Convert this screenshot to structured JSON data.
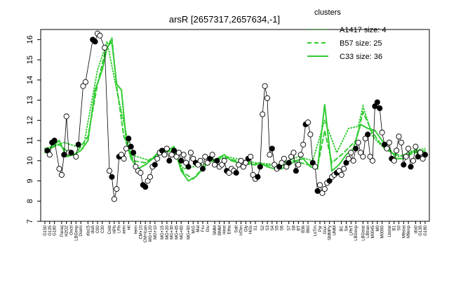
{
  "chart_data": {
    "type": "line",
    "title": "arsR [2657317,2657634,-1]",
    "xlabel": "",
    "ylabel": "",
    "ylim": [
      7,
      16.5
    ],
    "yticks": [
      7,
      8,
      9,
      10,
      11,
      12,
      13,
      14,
      15,
      16
    ],
    "legend": {
      "title": "clusters",
      "position": "top-right",
      "entries": [
        {
          "label": "A1417 size: 4",
          "style": "dotted"
        },
        {
          "label": "B57 size: 25",
          "style": "dashed"
        },
        {
          "label": "C33 size: 36",
          "style": "solid"
        }
      ]
    },
    "line_color": "#33cc33",
    "point_fill": "#ffffff",
    "point_fill_alt": "#000000",
    "n_conditions": 160,
    "x_tick_labels": [
      "G150",
      "G135",
      "G180",
      "Paraq",
      "H2O2",
      "Oxctl",
      "LBGexp",
      "Diami",
      "dia15",
      "dia5",
      "C90",
      "C30",
      "Cold",
      "HPh",
      "LPh",
      "aero",
      "nit",
      "ferm",
      "CM+10",
      "CM+Ican",
      "MG+120",
      "MG+10",
      "MG+15",
      "MG+20",
      "MG+30",
      "MG+45",
      "MG+60",
      "MG+90",
      "M/G",
      "Mal",
      "Fru",
      "Glu",
      "SMM",
      "BMM",
      "Heat",
      "Etha",
      "Salt",
      "HTim",
      "Gly",
      "HGs",
      "S1",
      "S2",
      "S3",
      "S4",
      "S5",
      "S6",
      "S7",
      "S8",
      "BT",
      "B36",
      "B60",
      "LoTm",
      "Pyr",
      "Gluc",
      "SMMPy",
      "UMM",
      "BC",
      "Sw",
      "LPhT",
      "LBGexp",
      "LBGstat",
      "LBtran",
      "M0045",
      "M0",
      "M0090",
      "Lbstat",
      "B1",
      "S0",
      "M9stat",
      "M9exp",
      "dia0",
      "G135",
      "G180"
    ],
    "series": [
      {
        "role": "C33 (solid)",
        "points": [
          [
            0,
            10.4
          ],
          [
            3,
            10.7
          ],
          [
            6,
            11.0
          ],
          [
            9,
            10.2
          ],
          [
            12,
            10.3
          ],
          [
            15,
            10.5
          ],
          [
            18,
            11.0
          ],
          [
            21,
            13.5
          ],
          [
            24,
            14.5
          ],
          [
            26,
            15.6
          ],
          [
            28,
            15.9
          ],
          [
            30,
            13.8
          ],
          [
            32,
            13.5
          ],
          [
            34,
            11.0
          ],
          [
            36,
            10.1
          ],
          [
            39,
            9.6
          ],
          [
            42,
            9.8
          ],
          [
            45,
            10.1
          ],
          [
            48,
            10.5
          ],
          [
            51,
            10.5
          ],
          [
            54,
            10.7
          ],
          [
            57,
            9.5
          ],
          [
            60,
            9.0
          ],
          [
            63,
            9.2
          ],
          [
            66,
            9.6
          ],
          [
            69,
            10.0
          ],
          [
            72,
            10.1
          ],
          [
            75,
            10.3
          ],
          [
            78,
            10.0
          ],
          [
            81,
            9.9
          ],
          [
            84,
            10.0
          ],
          [
            87,
            9.8
          ],
          [
            90,
            9.9
          ],
          [
            93,
            9.7
          ],
          [
            96,
            9.6
          ],
          [
            99,
            9.6
          ],
          [
            102,
            9.8
          ],
          [
            105,
            10.0
          ],
          [
            108,
            10.1
          ],
          [
            111,
            9.7
          ],
          [
            114,
            9.6
          ],
          [
            117,
            12.8
          ],
          [
            120,
            9.5
          ],
          [
            123,
            9.8
          ],
          [
            126,
            10.3
          ],
          [
            129,
            10.6
          ],
          [
            132,
            11.8
          ],
          [
            135,
            11.6
          ],
          [
            138,
            11.5
          ],
          [
            141,
            11.0
          ],
          [
            144,
            10.6
          ],
          [
            147,
            10.1
          ],
          [
            150,
            10.1
          ],
          [
            153,
            10.4
          ],
          [
            156,
            10.5
          ],
          [
            159,
            10.4
          ]
        ]
      },
      {
        "role": "B57 (dashed)",
        "points": [
          [
            0,
            10.5
          ],
          [
            6,
            10.8
          ],
          [
            12,
            10.2
          ],
          [
            18,
            11.2
          ],
          [
            22,
            13.8
          ],
          [
            25,
            15.3
          ],
          [
            28,
            16.1
          ],
          [
            30,
            13.7
          ],
          [
            33,
            11.2
          ],
          [
            37,
            10.0
          ],
          [
            42,
            9.9
          ],
          [
            48,
            10.4
          ],
          [
            54,
            10.5
          ],
          [
            58,
            9.4
          ],
          [
            62,
            9.1
          ],
          [
            68,
            9.9
          ],
          [
            74,
            10.2
          ],
          [
            80,
            10.0
          ],
          [
            86,
            9.8
          ],
          [
            92,
            9.8
          ],
          [
            98,
            9.7
          ],
          [
            104,
            10.0
          ],
          [
            110,
            9.8
          ],
          [
            114,
            9.7
          ],
          [
            117,
            11.5
          ],
          [
            120,
            9.9
          ],
          [
            125,
            10.4
          ],
          [
            130,
            11.0
          ],
          [
            133,
            12.4
          ],
          [
            137,
            11.4
          ],
          [
            140,
            10.9
          ],
          [
            145,
            10.4
          ],
          [
            150,
            10.2
          ],
          [
            155,
            10.4
          ],
          [
            159,
            10.5
          ]
        ]
      },
      {
        "role": "A1417 (dotted)",
        "points": [
          [
            0,
            10.6
          ],
          [
            8,
            10.9
          ],
          [
            16,
            10.6
          ],
          [
            22,
            14.5
          ],
          [
            26,
            15.9
          ],
          [
            30,
            13.5
          ],
          [
            36,
            10.3
          ],
          [
            44,
            10.0
          ],
          [
            52,
            10.6
          ],
          [
            58,
            9.6
          ],
          [
            66,
            9.8
          ],
          [
            76,
            10.2
          ],
          [
            88,
            9.9
          ],
          [
            98,
            9.8
          ],
          [
            106,
            10.2
          ],
          [
            112,
            10.0
          ],
          [
            117,
            12.0
          ],
          [
            122,
            10.4
          ],
          [
            127,
            11.6
          ],
          [
            131,
            11.7
          ],
          [
            133,
            12.7
          ],
          [
            137,
            11.2
          ],
          [
            142,
            10.6
          ],
          [
            148,
            10.2
          ],
          [
            154,
            10.5
          ],
          [
            159,
            10.6
          ]
        ]
      }
    ],
    "points": [
      {
        "x": 1,
        "y": 10.5,
        "f": 1
      },
      {
        "x": 2,
        "y": 10.3,
        "f": 0
      },
      {
        "x": 3,
        "y": 10.9,
        "f": 1
      },
      {
        "x": 4,
        "y": 11.0,
        "f": 1
      },
      {
        "x": 6,
        "y": 9.6,
        "f": 0
      },
      {
        "x": 7,
        "y": 9.3,
        "f": 0
      },
      {
        "x": 8,
        "y": 10.3,
        "f": 1
      },
      {
        "x": 9,
        "y": 12.2,
        "f": 0
      },
      {
        "x": 10,
        "y": 10.4,
        "f": 0
      },
      {
        "x": 11,
        "y": 10.4,
        "f": 1
      },
      {
        "x": 13,
        "y": 10.2,
        "f": 0
      },
      {
        "x": 14,
        "y": 10.8,
        "f": 1
      },
      {
        "x": 16,
        "y": 13.7,
        "f": 0
      },
      {
        "x": 17,
        "y": 13.9,
        "f": 0
      },
      {
        "x": 20,
        "y": 16.0,
        "f": 1
      },
      {
        "x": 21,
        "y": 15.9,
        "f": 1
      },
      {
        "x": 22,
        "y": 16.3,
        "f": 0
      },
      {
        "x": 23,
        "y": 16.2,
        "f": 0
      },
      {
        "x": 25,
        "y": 15.6,
        "f": 0
      },
      {
        "x": 27,
        "y": 9.5,
        "f": 0
      },
      {
        "x": 28,
        "y": 9.2,
        "f": 1
      },
      {
        "x": 29,
        "y": 8.1,
        "f": 0
      },
      {
        "x": 30,
        "y": 8.6,
        "f": 0
      },
      {
        "x": 31,
        "y": 10.2,
        "f": 1
      },
      {
        "x": 32,
        "y": 10.3,
        "f": 0
      },
      {
        "x": 33,
        "y": 10.1,
        "f": 0
      },
      {
        "x": 34,
        "y": 10.6,
        "f": 0
      },
      {
        "x": 35,
        "y": 11.1,
        "f": 1
      },
      {
        "x": 36,
        "y": 10.7,
        "f": 1
      },
      {
        "x": 37,
        "y": 10.4,
        "f": 1
      },
      {
        "x": 38,
        "y": 9.7,
        "f": 0
      },
      {
        "x": 39,
        "y": 9.5,
        "f": 0
      },
      {
        "x": 40,
        "y": 9.4,
        "f": 0
      },
      {
        "x": 41,
        "y": 8.8,
        "f": 1
      },
      {
        "x": 42,
        "y": 8.7,
        "f": 1
      },
      {
        "x": 43,
        "y": 9.0,
        "f": 0
      },
      {
        "x": 44,
        "y": 9.2,
        "f": 0
      },
      {
        "x": 45,
        "y": 9.7,
        "f": 0
      },
      {
        "x": 46,
        "y": 9.8,
        "f": 1
      },
      {
        "x": 47,
        "y": 10.1,
        "f": 0
      },
      {
        "x": 48,
        "y": 10.4,
        "f": 0
      },
      {
        "x": 49,
        "y": 10.5,
        "f": 1
      },
      {
        "x": 50,
        "y": 10.3,
        "f": 0
      },
      {
        "x": 51,
        "y": 10.6,
        "f": 0
      },
      {
        "x": 52,
        "y": 10.0,
        "f": 1
      },
      {
        "x": 53,
        "y": 10.3,
        "f": 0
      },
      {
        "x": 54,
        "y": 10.5,
        "f": 1
      },
      {
        "x": 55,
        "y": 10.2,
        "f": 0
      },
      {
        "x": 56,
        "y": 10.4,
        "f": 0
      },
      {
        "x": 57,
        "y": 10.0,
        "f": 1
      },
      {
        "x": 58,
        "y": 10.3,
        "f": 0
      },
      {
        "x": 59,
        "y": 9.9,
        "f": 0
      },
      {
        "x": 60,
        "y": 9.7,
        "f": 1
      },
      {
        "x": 61,
        "y": 10.4,
        "f": 0
      },
      {
        "x": 62,
        "y": 10.1,
        "f": 0
      },
      {
        "x": 63,
        "y": 9.9,
        "f": 1
      },
      {
        "x": 64,
        "y": 9.8,
        "f": 0
      },
      {
        "x": 65,
        "y": 10.0,
        "f": 0
      },
      {
        "x": 66,
        "y": 9.6,
        "f": 1
      },
      {
        "x": 67,
        "y": 10.2,
        "f": 0
      },
      {
        "x": 68,
        "y": 9.9,
        "f": 0
      },
      {
        "x": 69,
        "y": 10.1,
        "f": 1
      },
      {
        "x": 70,
        "y": 10.3,
        "f": 0
      },
      {
        "x": 71,
        "y": 9.8,
        "f": 0
      },
      {
        "x": 72,
        "y": 10.0,
        "f": 1
      },
      {
        "x": 73,
        "y": 9.7,
        "f": 0
      },
      {
        "x": 74,
        "y": 9.8,
        "f": 0
      },
      {
        "x": 75,
        "y": 10.0,
        "f": 0
      },
      {
        "x": 76,
        "y": 9.5,
        "f": 1
      },
      {
        "x": 77,
        "y": 9.4,
        "f": 0
      },
      {
        "x": 78,
        "y": 9.6,
        "f": 0
      },
      {
        "x": 79,
        "y": 9.5,
        "f": 0
      },
      {
        "x": 80,
        "y": 9.4,
        "f": 1
      },
      {
        "x": 81,
        "y": 9.8,
        "f": 0
      },
      {
        "x": 82,
        "y": 10.0,
        "f": 0
      },
      {
        "x": 83,
        "y": 9.7,
        "f": 0
      },
      {
        "x": 84,
        "y": 9.9,
        "f": 0
      },
      {
        "x": 85,
        "y": 10.1,
        "f": 1
      },
      {
        "x": 86,
        "y": 10.2,
        "f": 0
      },
      {
        "x": 87,
        "y": 9.3,
        "f": 0
      },
      {
        "x": 88,
        "y": 9.1,
        "f": 0
      },
      {
        "x": 89,
        "y": 9.2,
        "f": 1
      },
      {
        "x": 90,
        "y": 9.7,
        "f": 1
      },
      {
        "x": 91,
        "y": 12.3,
        "f": 0
      },
      {
        "x": 92,
        "y": 13.7,
        "f": 0
      },
      {
        "x": 93,
        "y": 13.1,
        "f": 0
      },
      {
        "x": 94,
        "y": 10.3,
        "f": 0
      },
      {
        "x": 95,
        "y": 10.6,
        "f": 1
      },
      {
        "x": 96,
        "y": 9.8,
        "f": 0
      },
      {
        "x": 97,
        "y": 9.6,
        "f": 0
      },
      {
        "x": 98,
        "y": 9.7,
        "f": 1
      },
      {
        "x": 99,
        "y": 9.9,
        "f": 0
      },
      {
        "x": 100,
        "y": 10.1,
        "f": 0
      },
      {
        "x": 101,
        "y": 9.7,
        "f": 0
      },
      {
        "x": 102,
        "y": 9.9,
        "f": 1
      },
      {
        "x": 103,
        "y": 10.2,
        "f": 0
      },
      {
        "x": 104,
        "y": 10.4,
        "f": 0
      },
      {
        "x": 105,
        "y": 9.5,
        "f": 1
      },
      {
        "x": 106,
        "y": 9.8,
        "f": 0
      },
      {
        "x": 107,
        "y": 10.3,
        "f": 0
      },
      {
        "x": 108,
        "y": 10.8,
        "f": 0
      },
      {
        "x": 109,
        "y": 11.8,
        "f": 1
      },
      {
        "x": 110,
        "y": 11.9,
        "f": 0
      },
      {
        "x": 111,
        "y": 11.3,
        "f": 0
      },
      {
        "x": 112,
        "y": 9.9,
        "f": 1
      },
      {
        "x": 113,
        "y": 9.7,
        "f": 0
      },
      {
        "x": 114,
        "y": 8.5,
        "f": 1
      },
      {
        "x": 115,
        "y": 8.8,
        "f": 0
      },
      {
        "x": 116,
        "y": 8.4,
        "f": 0
      },
      {
        "x": 117,
        "y": 8.6,
        "f": 0
      },
      {
        "x": 118,
        "y": 8.9,
        "f": 0
      },
      {
        "x": 119,
        "y": 9.0,
        "f": 1
      },
      {
        "x": 120,
        "y": 9.2,
        "f": 0
      },
      {
        "x": 121,
        "y": 9.3,
        "f": 0
      },
      {
        "x": 122,
        "y": 9.4,
        "f": 1
      },
      {
        "x": 123,
        "y": 9.5,
        "f": 0
      },
      {
        "x": 124,
        "y": 9.3,
        "f": 0
      },
      {
        "x": 125,
        "y": 9.6,
        "f": 0
      },
      {
        "x": 126,
        "y": 9.9,
        "f": 1
      },
      {
        "x": 127,
        "y": 10.1,
        "f": 0
      },
      {
        "x": 128,
        "y": 10.4,
        "f": 0
      },
      {
        "x": 129,
        "y": 10.0,
        "f": 0
      },
      {
        "x": 130,
        "y": 10.6,
        "f": 1
      },
      {
        "x": 131,
        "y": 10.9,
        "f": 0
      },
      {
        "x": 132,
        "y": 10.4,
        "f": 0
      },
      {
        "x": 133,
        "y": 10.2,
        "f": 0
      },
      {
        "x": 134,
        "y": 11.1,
        "f": 0
      },
      {
        "x": 135,
        "y": 11.3,
        "f": 1
      },
      {
        "x": 136,
        "y": 10.2,
        "f": 0
      },
      {
        "x": 137,
        "y": 10.0,
        "f": 0
      },
      {
        "x": 138,
        "y": 12.7,
        "f": 1
      },
      {
        "x": 139,
        "y": 12.9,
        "f": 1
      },
      {
        "x": 140,
        "y": 12.6,
        "f": 1
      },
      {
        "x": 141,
        "y": 11.4,
        "f": 0
      },
      {
        "x": 142,
        "y": 10.8,
        "f": 1
      },
      {
        "x": 143,
        "y": 10.6,
        "f": 0
      },
      {
        "x": 144,
        "y": 10.9,
        "f": 0
      },
      {
        "x": 145,
        "y": 10.1,
        "f": 1
      },
      {
        "x": 146,
        "y": 10.0,
        "f": 0
      },
      {
        "x": 147,
        "y": 10.5,
        "f": 0
      },
      {
        "x": 148,
        "y": 11.2,
        "f": 0
      },
      {
        "x": 149,
        "y": 10.9,
        "f": 0
      },
      {
        "x": 150,
        "y": 9.8,
        "f": 1
      },
      {
        "x": 151,
        "y": 10.2,
        "f": 0
      },
      {
        "x": 152,
        "y": 10.6,
        "f": 0
      },
      {
        "x": 153,
        "y": 9.7,
        "f": 1
      },
      {
        "x": 154,
        "y": 10.0,
        "f": 0
      },
      {
        "x": 155,
        "y": 10.7,
        "f": 0
      },
      {
        "x": 156,
        "y": 10.2,
        "f": 1
      },
      {
        "x": 157,
        "y": 10.4,
        "f": 0
      },
      {
        "x": 158,
        "y": 10.1,
        "f": 0
      },
      {
        "x": 159,
        "y": 10.3,
        "f": 1
      }
    ]
  }
}
